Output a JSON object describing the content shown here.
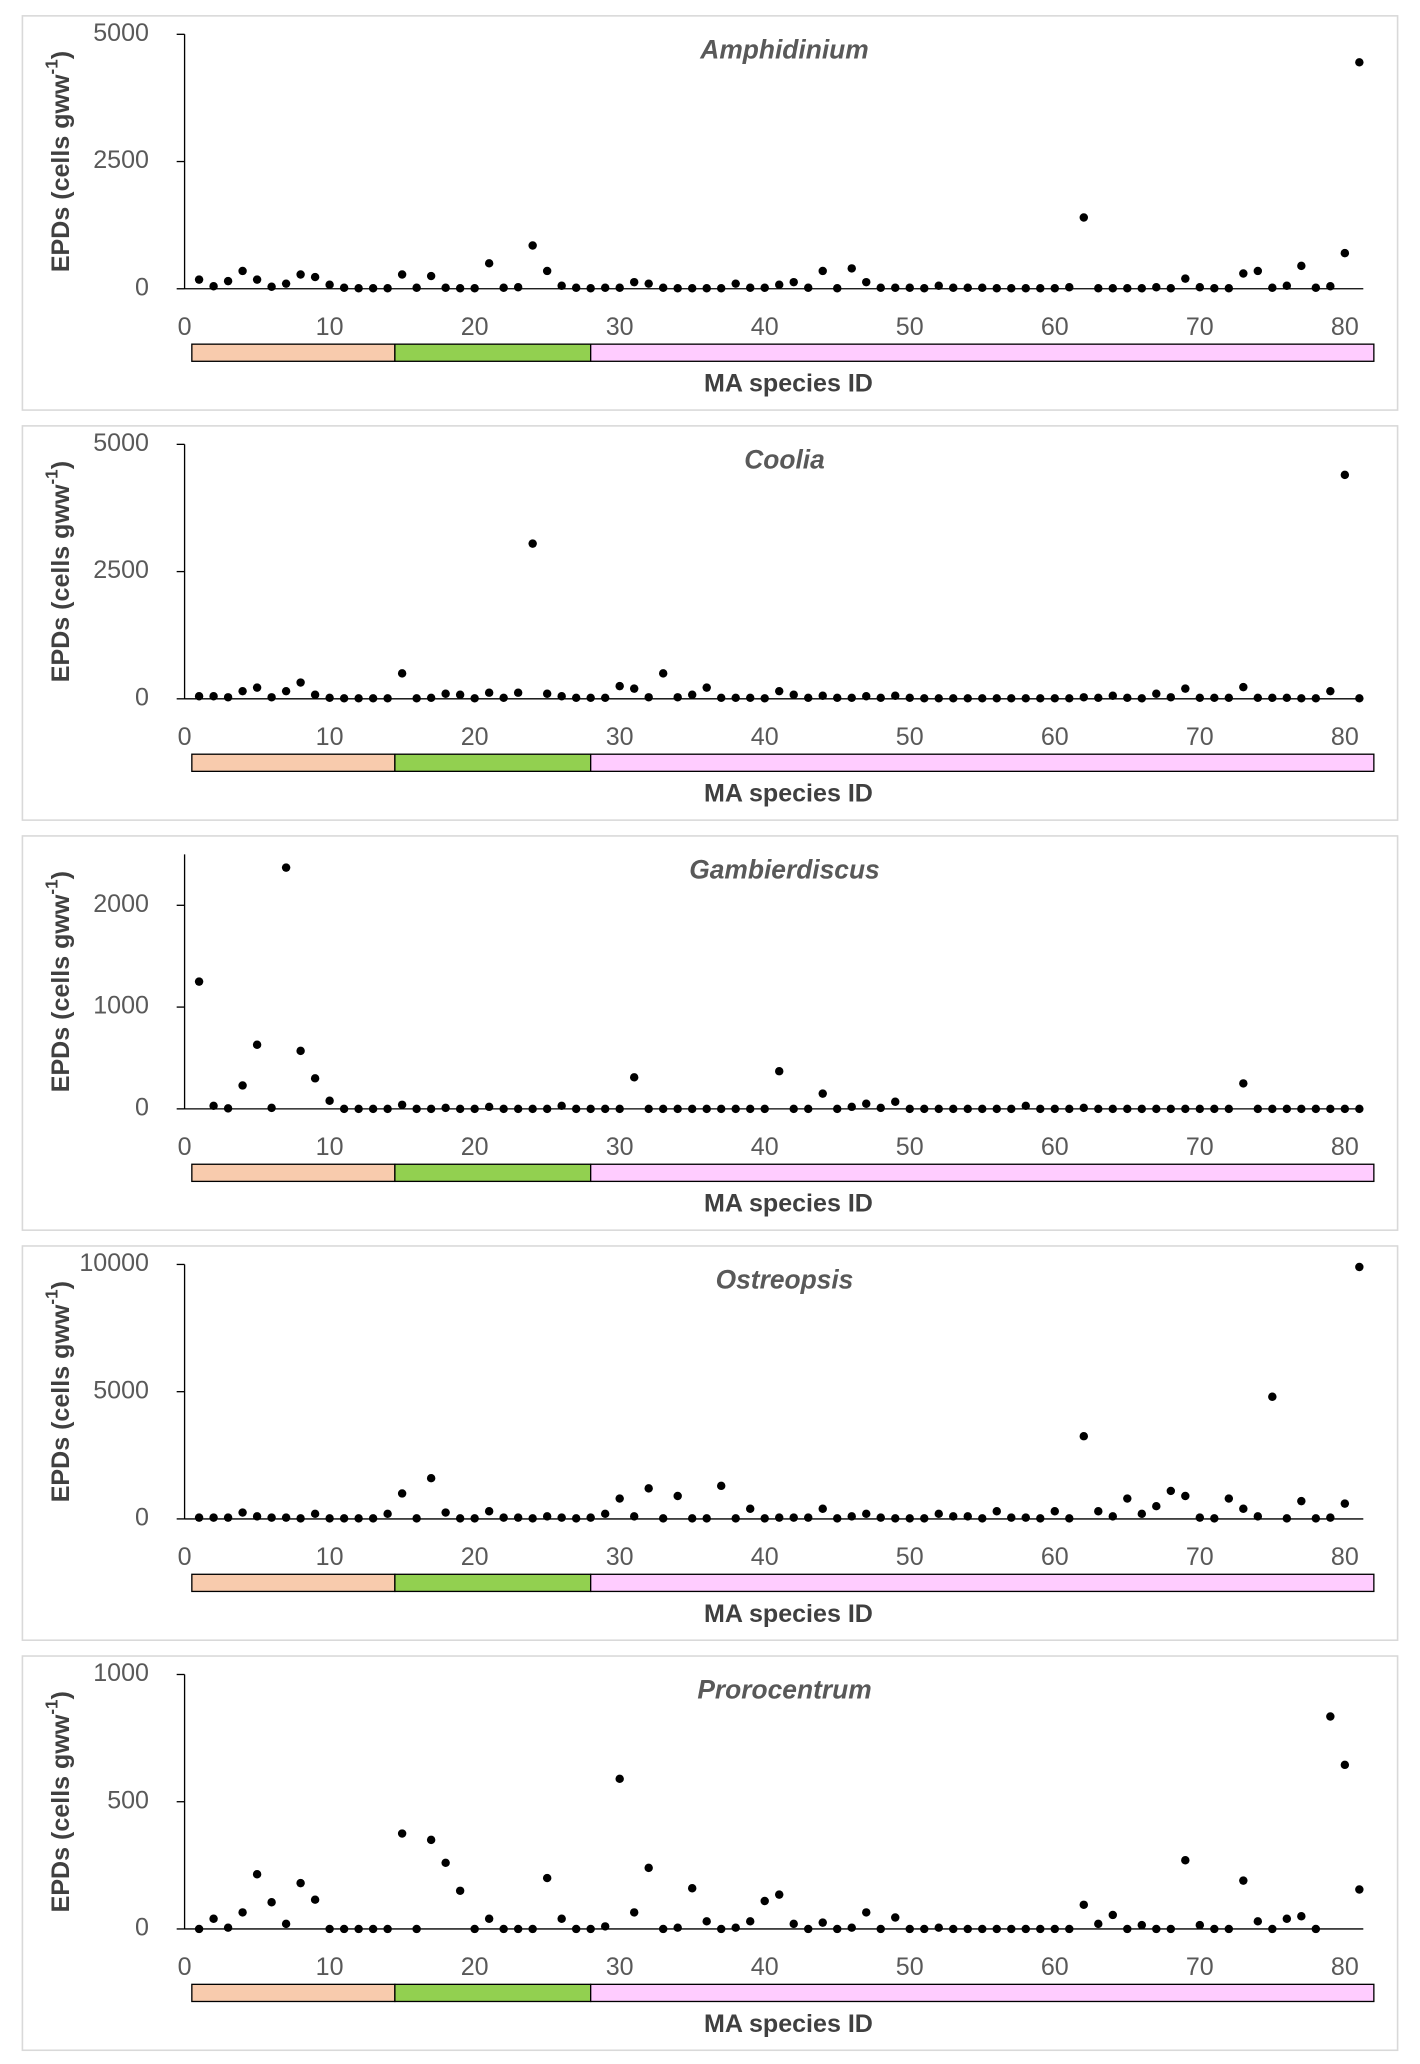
{
  "groups": [
    {
      "from": 0.5,
      "to": 14.5,
      "color": "#f8cbad"
    },
    {
      "from": 14.5,
      "to": 28,
      "color": "#92d050"
    },
    {
      "from": 28,
      "to": 82,
      "color": "#ffccff"
    }
  ],
  "chart_data": [
    {
      "type": "scatter",
      "title": "Amphidinium",
      "xlabel": "MA species ID",
      "ylabel": [
        "EPDs (cells gww",
        "-1",
        ")"
      ],
      "color": "#000000",
      "x": [
        1,
        2,
        3,
        4,
        5,
        6,
        7,
        8,
        9,
        10,
        11,
        12,
        13,
        14,
        15,
        16,
        17,
        18,
        19,
        20,
        21,
        22,
        23,
        24,
        25,
        26,
        27,
        28,
        29,
        30,
        31,
        32,
        33,
        34,
        35,
        36,
        37,
        38,
        39,
        40,
        41,
        42,
        43,
        44,
        45,
        46,
        47,
        48,
        49,
        50,
        51,
        52,
        53,
        54,
        55,
        56,
        57,
        58,
        59,
        60,
        61,
        62,
        63,
        64,
        65,
        66,
        67,
        68,
        69,
        70,
        71,
        72,
        73,
        74,
        75,
        76,
        77,
        78,
        79,
        80,
        81
      ],
      "values": [
        180,
        50,
        150,
        350,
        180,
        40,
        100,
        280,
        230,
        80,
        20,
        10,
        10,
        10,
        280,
        20,
        250,
        20,
        10,
        10,
        500,
        20,
        30,
        850,
        350,
        60,
        20,
        10,
        20,
        20,
        130,
        100,
        20,
        10,
        10,
        10,
        10,
        100,
        20,
        20,
        80,
        130,
        20,
        350,
        10,
        400,
        130,
        20,
        20,
        20,
        10,
        60,
        20,
        20,
        20,
        10,
        10,
        10,
        10,
        10,
        30,
        1400,
        10,
        10,
        10,
        10,
        30,
        10,
        200,
        30,
        10,
        10,
        300,
        350,
        20,
        60,
        450,
        20,
        50,
        700,
        4450
      ],
      "xlim": [
        0,
        82
      ],
      "xticks": [
        0,
        10,
        20,
        30,
        40,
        50,
        60,
        70,
        80
      ],
      "ylim": [
        0,
        5000
      ],
      "yticks": [
        0,
        2500,
        5000
      ]
    },
    {
      "type": "scatter",
      "title": "Coolia",
      "xlabel": "MA species ID",
      "ylabel": [
        "EPDs (cells gww",
        "-1",
        ")"
      ],
      "color": "#000000",
      "x": [
        1,
        2,
        3,
        4,
        5,
        6,
        7,
        8,
        9,
        10,
        11,
        12,
        13,
        14,
        15,
        16,
        17,
        18,
        19,
        20,
        21,
        22,
        23,
        24,
        25,
        26,
        27,
        28,
        29,
        30,
        31,
        32,
        33,
        34,
        35,
        36,
        37,
        38,
        39,
        40,
        41,
        42,
        43,
        44,
        45,
        46,
        47,
        48,
        49,
        50,
        51,
        52,
        53,
        54,
        55,
        56,
        57,
        58,
        59,
        60,
        61,
        62,
        63,
        64,
        65,
        66,
        67,
        68,
        69,
        70,
        71,
        72,
        73,
        74,
        75,
        76,
        77,
        78,
        79,
        80,
        81
      ],
      "values": [
        50,
        50,
        30,
        150,
        220,
        30,
        150,
        320,
        80,
        20,
        10,
        10,
        10,
        10,
        500,
        10,
        20,
        100,
        80,
        10,
        120,
        20,
        120,
        3050,
        100,
        50,
        20,
        20,
        20,
        250,
        200,
        30,
        500,
        30,
        80,
        220,
        20,
        20,
        20,
        10,
        150,
        80,
        20,
        60,
        20,
        20,
        50,
        20,
        60,
        20,
        10,
        10,
        10,
        10,
        10,
        10,
        10,
        10,
        10,
        10,
        10,
        30,
        20,
        60,
        20,
        10,
        100,
        30,
        200,
        20,
        20,
        20,
        230,
        20,
        20,
        20,
        10,
        10,
        150,
        4400,
        10
      ],
      "xlim": [
        0,
        82
      ],
      "xticks": [
        0,
        10,
        20,
        30,
        40,
        50,
        60,
        70,
        80
      ],
      "ylim": [
        0,
        5000
      ],
      "yticks": [
        0,
        2500,
        5000
      ]
    },
    {
      "type": "scatter",
      "title": "Gambierdiscus",
      "xlabel": "MA species ID",
      "ylabel": [
        "EPDs (cells gww",
        "-1",
        ")"
      ],
      "color": "#000000",
      "x": [
        1,
        2,
        3,
        4,
        5,
        6,
        7,
        8,
        9,
        10,
        11,
        12,
        13,
        14,
        15,
        16,
        17,
        18,
        19,
        20,
        21,
        22,
        23,
        24,
        25,
        26,
        27,
        28,
        29,
        30,
        31,
        32,
        33,
        34,
        35,
        36,
        37,
        38,
        39,
        40,
        41,
        42,
        43,
        44,
        45,
        46,
        47,
        48,
        49,
        50,
        51,
        52,
        53,
        54,
        55,
        56,
        57,
        58,
        59,
        60,
        61,
        62,
        63,
        64,
        65,
        66,
        67,
        68,
        69,
        70,
        71,
        72,
        73,
        74,
        75,
        76,
        77,
        78,
        79,
        80,
        81
      ],
      "values": [
        1250,
        30,
        5,
        230,
        630,
        10,
        2370,
        570,
        300,
        80,
        0,
        0,
        0,
        0,
        40,
        0,
        0,
        10,
        0,
        0,
        20,
        0,
        0,
        0,
        0,
        30,
        0,
        0,
        0,
        0,
        310,
        0,
        0,
        0,
        0,
        0,
        0,
        0,
        0,
        0,
        370,
        0,
        0,
        150,
        0,
        20,
        50,
        10,
        70,
        0,
        0,
        0,
        0,
        0,
        0,
        0,
        0,
        30,
        0,
        0,
        0,
        10,
        0,
        0,
        0,
        0,
        0,
        0,
        0,
        0,
        0,
        0,
        250,
        0,
        0,
        0,
        0,
        0,
        0,
        0,
        0
      ],
      "xlim": [
        0,
        82
      ],
      "xticks": [
        0,
        10,
        20,
        30,
        40,
        50,
        60,
        70,
        80
      ],
      "ylim": [
        0,
        2500
      ],
      "yticks": [
        0,
        1000,
        2000
      ]
    },
    {
      "type": "scatter",
      "title": "Ostreopsis",
      "xlabel": "MA species ID",
      "ylabel": [
        "EPDs (cells gww",
        "-1",
        ")"
      ],
      "color": "#000000",
      "x": [
        1,
        2,
        3,
        4,
        5,
        6,
        7,
        8,
        9,
        10,
        11,
        12,
        13,
        14,
        15,
        16,
        17,
        18,
        19,
        20,
        21,
        22,
        23,
        24,
        25,
        26,
        27,
        28,
        29,
        30,
        31,
        32,
        33,
        34,
        35,
        36,
        37,
        38,
        39,
        40,
        41,
        42,
        43,
        44,
        45,
        46,
        47,
        48,
        49,
        50,
        51,
        52,
        53,
        54,
        55,
        56,
        57,
        58,
        59,
        60,
        61,
        62,
        63,
        64,
        65,
        66,
        67,
        68,
        69,
        70,
        71,
        72,
        73,
        74,
        75,
        76,
        77,
        78,
        79,
        80,
        81
      ],
      "values": [
        50,
        50,
        50,
        250,
        100,
        50,
        50,
        20,
        200,
        20,
        20,
        20,
        20,
        200,
        1000,
        20,
        1600,
        250,
        20,
        20,
        300,
        50,
        50,
        20,
        100,
        50,
        20,
        50,
        200,
        800,
        100,
        1200,
        20,
        900,
        20,
        20,
        1300,
        20,
        400,
        20,
        50,
        50,
        50,
        400,
        20,
        100,
        200,
        50,
        20,
        20,
        20,
        200,
        100,
        100,
        20,
        300,
        50,
        50,
        20,
        300,
        20,
        3250,
        300,
        100,
        800,
        200,
        500,
        1100,
        900,
        50,
        20,
        800,
        400,
        100,
        4800,
        20,
        700,
        20,
        50,
        600,
        9900
      ],
      "xlim": [
        0,
        82
      ],
      "xticks": [
        0,
        10,
        20,
        30,
        40,
        50,
        60,
        70,
        80
      ],
      "ylim": [
        0,
        10000
      ],
      "yticks": [
        0,
        5000,
        10000
      ]
    },
    {
      "type": "scatter",
      "title": "Prorocentrum",
      "xlabel": "MA species ID",
      "ylabel": [
        "EPDs (cells gww",
        "-1",
        ")"
      ],
      "color": "#000000",
      "x": [
        1,
        2,
        3,
        4,
        5,
        6,
        7,
        8,
        9,
        10,
        11,
        12,
        13,
        14,
        15,
        16,
        17,
        18,
        19,
        20,
        21,
        22,
        23,
        24,
        25,
        26,
        27,
        28,
        29,
        30,
        31,
        32,
        33,
        34,
        35,
        36,
        37,
        38,
        39,
        40,
        41,
        42,
        43,
        44,
        45,
        46,
        47,
        48,
        49,
        50,
        51,
        52,
        53,
        54,
        55,
        56,
        57,
        58,
        59,
        60,
        61,
        62,
        63,
        64,
        65,
        66,
        67,
        68,
        69,
        70,
        71,
        72,
        73,
        74,
        75,
        76,
        77,
        78,
        79,
        80,
        81
      ],
      "values": [
        0,
        40,
        5,
        65,
        215,
        105,
        20,
        180,
        115,
        0,
        0,
        0,
        0,
        0,
        375,
        0,
        350,
        260,
        150,
        0,
        40,
        0,
        0,
        0,
        200,
        40,
        0,
        0,
        10,
        590,
        65,
        240,
        0,
        5,
        160,
        30,
        0,
        5,
        30,
        110,
        135,
        20,
        0,
        25,
        0,
        5,
        65,
        0,
        45,
        0,
        0,
        5,
        0,
        0,
        0,
        0,
        0,
        0,
        0,
        0,
        0,
        95,
        20,
        55,
        0,
        15,
        0,
        0,
        270,
        15,
        0,
        0,
        190,
        30,
        0,
        40,
        50,
        0,
        835,
        645,
        155
      ],
      "xlim": [
        0,
        82
      ],
      "xticks": [
        0,
        10,
        20,
        30,
        40,
        50,
        60,
        70,
        80
      ],
      "ylim": [
        0,
        1000
      ],
      "yticks": [
        0,
        500,
        1000
      ]
    }
  ]
}
